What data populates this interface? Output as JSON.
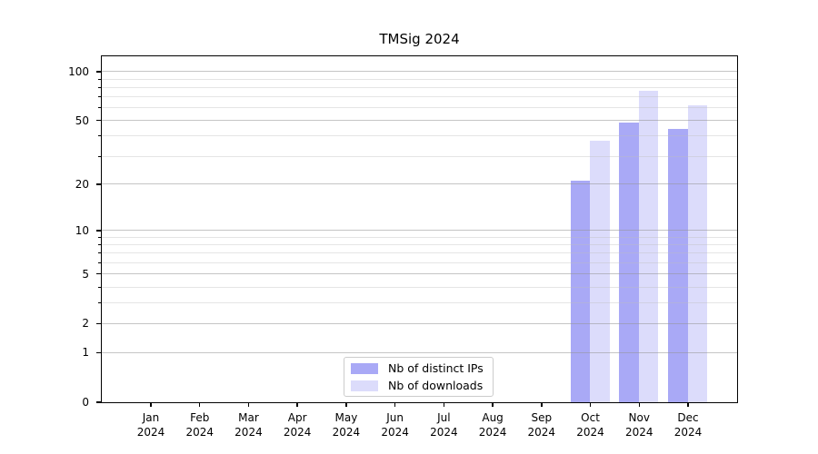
{
  "chart_data": {
    "type": "bar",
    "title": "TMSig 2024",
    "yscale": "log1p",
    "grid": true,
    "legend_position": "lower center",
    "year": "2024",
    "months": [
      "Jan",
      "Feb",
      "Mar",
      "Apr",
      "May",
      "Jun",
      "Jul",
      "Aug",
      "Sep",
      "Oct",
      "Nov",
      "Dec"
    ],
    "categories": [
      "Jan 2024",
      "Feb 2024",
      "Mar 2024",
      "Apr 2024",
      "May 2024",
      "Jun 2024",
      "Jul 2024",
      "Aug 2024",
      "Sep 2024",
      "Oct 2024",
      "Nov 2024",
      "Dec 2024"
    ],
    "series": [
      {
        "name": "Nb of distinct IPs",
        "color": "#a9a9f6",
        "values": [
          0,
          0,
          0,
          0,
          0,
          0,
          0,
          0,
          0,
          21,
          48,
          44
        ]
      },
      {
        "name": "Nb of downloads",
        "color": "#dcdcfb",
        "values": [
          0,
          0,
          0,
          0,
          0,
          0,
          0,
          0,
          0,
          37,
          76,
          62
        ]
      }
    ],
    "y_ticks": [
      0,
      1,
      2,
      5,
      10,
      20,
      50,
      100
    ],
    "y_minor_ticks": [
      3,
      4,
      6,
      7,
      8,
      9,
      30,
      40,
      60,
      70,
      80,
      90
    ],
    "ylim": [
      0,
      124
    ]
  }
}
